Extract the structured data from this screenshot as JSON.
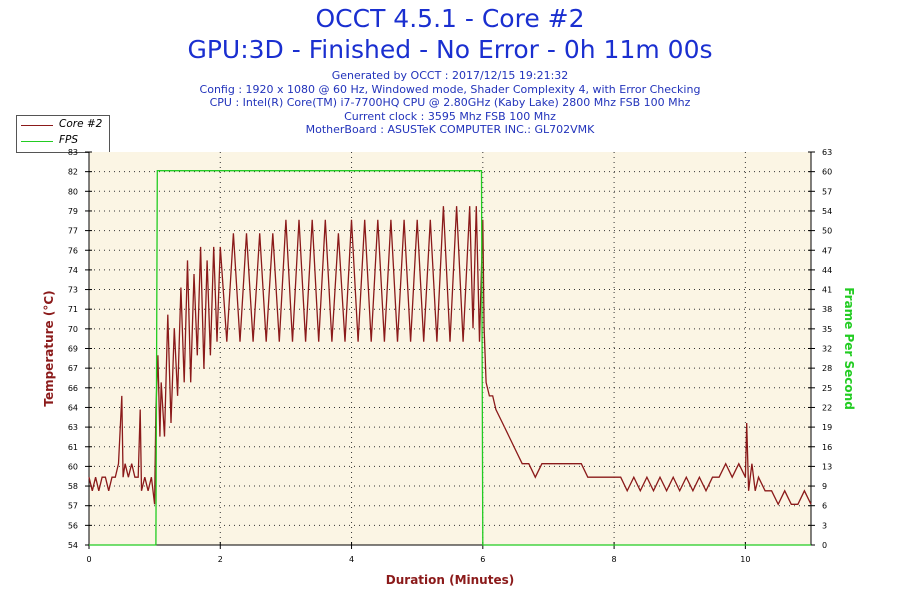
{
  "header": {
    "title": "OCCT 4.5.1 - Core #2",
    "subtitle": "GPU:3D - Finished - No Error - 0h 11m 00s",
    "info_lines": [
      "Generated by OCCT : 2017/12/15 19:21:32",
      "Config : 1920 x 1080 @ 60 Hz, Windowed mode, Shader Complexity 4, with Error Checking",
      "CPU : Intel(R) Core(TM) i7-7700HQ CPU @ 2.80GHz (Kaby Lake) 2800 Mhz FSB 100 Mhz",
      "Current clock : 3595 Mhz FSB 100 Mhz",
      "MotherBoard : ASUSTeK COMPUTER INC.: GL702VMK"
    ]
  },
  "legend": {
    "items": [
      {
        "label": "Core #2",
        "color": "#8b1a1a"
      },
      {
        "label": "FPS",
        "color": "#22cc22"
      }
    ]
  },
  "colors": {
    "plot_bg": "#fbf5e4",
    "temp": "#8b1a1a",
    "fps": "#22cc22",
    "left_label": "#8b1a1a",
    "right_label": "#22cc22"
  },
  "chart_data": {
    "type": "line",
    "xlabel": "Duration (Minutes)",
    "ylabel": "Temperature (°C)",
    "y2label": "Frame Per Second",
    "xlim": [
      0,
      11
    ],
    "ylim": [
      54,
      83
    ],
    "y2lim": [
      0,
      63
    ],
    "x_ticks": [
      0,
      2,
      4,
      6,
      8,
      10
    ],
    "y_ticks": [
      54,
      56,
      57,
      58,
      60,
      61,
      63,
      64,
      66,
      67,
      69,
      70,
      71,
      73,
      74,
      76,
      77,
      79,
      80,
      82,
      83
    ],
    "y2_ticks": [
      0,
      3,
      6,
      9,
      13,
      16,
      19,
      22,
      25,
      28,
      32,
      35,
      38,
      41,
      44,
      47,
      50,
      54,
      57,
      60,
      63
    ],
    "grid": true,
    "series": [
      {
        "name": "Core #2",
        "axis": "left",
        "x": [
          0,
          0.05,
          0.1,
          0.15,
          0.2,
          0.25,
          0.3,
          0.35,
          0.4,
          0.45,
          0.5,
          0.52,
          0.55,
          0.6,
          0.65,
          0.7,
          0.75,
          0.78,
          0.8,
          0.85,
          0.9,
          0.95,
          1.0,
          1.02,
          1.05,
          1.08,
          1.1,
          1.15,
          1.2,
          1.25,
          1.3,
          1.35,
          1.4,
          1.45,
          1.5,
          1.55,
          1.6,
          1.65,
          1.7,
          1.75,
          1.8,
          1.85,
          1.9,
          1.95,
          2.0,
          2.1,
          2.2,
          2.3,
          2.4,
          2.5,
          2.6,
          2.7,
          2.8,
          2.9,
          3.0,
          3.1,
          3.2,
          3.3,
          3.4,
          3.5,
          3.6,
          3.7,
          3.8,
          3.9,
          4.0,
          4.1,
          4.2,
          4.3,
          4.4,
          4.5,
          4.6,
          4.7,
          4.8,
          4.9,
          5.0,
          5.1,
          5.2,
          5.3,
          5.4,
          5.5,
          5.6,
          5.7,
          5.8,
          5.85,
          5.9,
          5.95,
          6.0,
          6.02,
          6.05,
          6.1,
          6.15,
          6.2,
          6.3,
          6.4,
          6.5,
          6.6,
          6.7,
          6.8,
          6.9,
          7.0,
          7.1,
          7.2,
          7.3,
          7.4,
          7.5,
          7.6,
          7.7,
          7.8,
          7.9,
          8.0,
          8.1,
          8.2,
          8.3,
          8.4,
          8.5,
          8.6,
          8.7,
          8.8,
          8.9,
          9.0,
          9.1,
          9.2,
          9.3,
          9.4,
          9.5,
          9.6,
          9.7,
          9.8,
          9.9,
          10.0,
          10.02,
          10.05,
          10.1,
          10.15,
          10.2,
          10.3,
          10.4,
          10.5,
          10.6,
          10.7,
          10.8,
          10.9,
          11.0
        ],
        "values": [
          59,
          58,
          59,
          58,
          59,
          59,
          58,
          59,
          59,
          60,
          65,
          59,
          60,
          59,
          60,
          59,
          59,
          64,
          58,
          59,
          58,
          59,
          57,
          64,
          68,
          62,
          66,
          62,
          71,
          63,
          70,
          65,
          73,
          66,
          75,
          66,
          74,
          68,
          76,
          67,
          75,
          68,
          76,
          69,
          76,
          69,
          77,
          69,
          77,
          69,
          77,
          69,
          77,
          69,
          78,
          69,
          78,
          69,
          78,
          69,
          78,
          69,
          77,
          69,
          78,
          69,
          78,
          69,
          78,
          69,
          78,
          69,
          78,
          69,
          78,
          69,
          78,
          69,
          79,
          69,
          79,
          69,
          79,
          70,
          79,
          69,
          78,
          70,
          66,
          65,
          65,
          64,
          63,
          62,
          61,
          60,
          60,
          59,
          60,
          60,
          60,
          60,
          60,
          60,
          60,
          59,
          59,
          59,
          59,
          59,
          59,
          58,
          59,
          58,
          59,
          58,
          59,
          58,
          59,
          58,
          59,
          58,
          59,
          58,
          59,
          59,
          60,
          59,
          60,
          59,
          63,
          58,
          60,
          58,
          59,
          58,
          58,
          57,
          58,
          57,
          57,
          58,
          57
        ]
      },
      {
        "name": "FPS",
        "axis": "right",
        "x": [
          0,
          1.02,
          1.04,
          5.98,
          6.0,
          11
        ],
        "values": [
          0,
          0,
          60,
          60,
          0,
          0
        ]
      }
    ]
  }
}
